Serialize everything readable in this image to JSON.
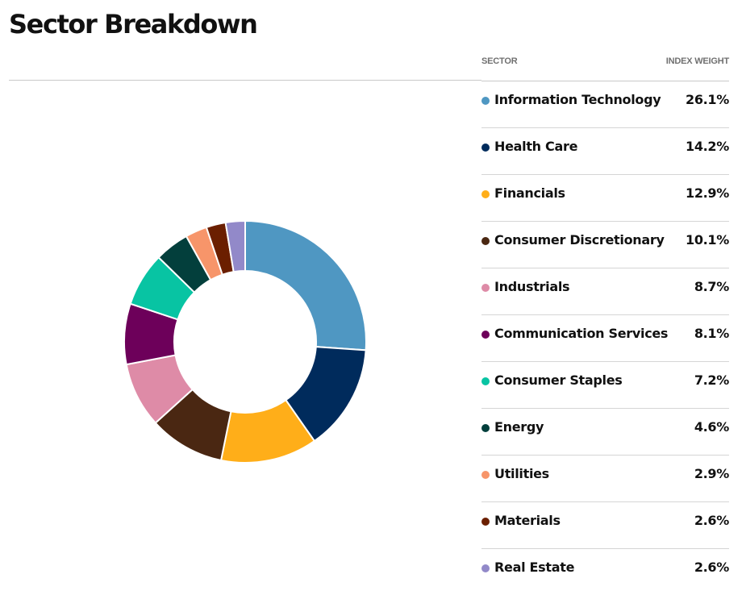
{
  "page": {
    "title": "Sector Breakdown"
  },
  "table": {
    "header_sector": "SECTOR",
    "header_weight": "INDEX WEIGHT"
  },
  "chart_data": {
    "type": "pie",
    "subtype": "donut",
    "title": "",
    "legend_placement": "right",
    "categories": [
      "Information Technology",
      "Health Care",
      "Financials",
      "Consumer Discretionary",
      "Industrials",
      "Communication Services",
      "Consumer Staples",
      "Energy",
      "Utilities",
      "Materials",
      "Real Estate"
    ],
    "values": [
      26.1,
      14.2,
      12.9,
      10.1,
      8.7,
      8.1,
      7.2,
      4.6,
      2.9,
      2.6,
      2.6
    ],
    "value_labels": [
      "26.1%",
      "14.2%",
      "12.9%",
      "10.1%",
      "8.7%",
      "8.1%",
      "7.2%",
      "4.6%",
      "2.9%",
      "2.6%",
      "2.6%"
    ],
    "colors": [
      "#4f97c2",
      "#002b5c",
      "#ffae19",
      "#4a2712",
      "#de8ba7",
      "#6d005a",
      "#08c4a3",
      "#033f3c",
      "#f7956a",
      "#6b1f00",
      "#9289c9"
    ],
    "unit": "%"
  }
}
